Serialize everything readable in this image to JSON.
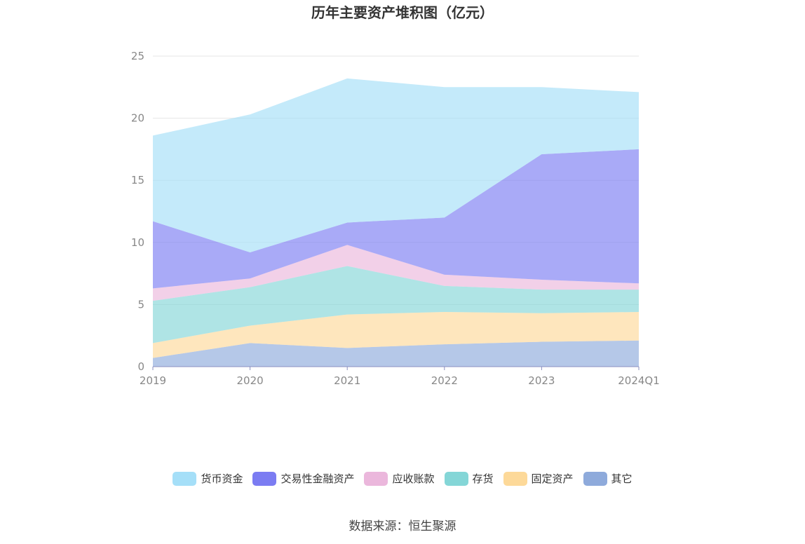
{
  "title": "历年主要资产堆积图（亿元）",
  "source": "数据来源：恒生聚源",
  "chart_data": {
    "type": "area",
    "stacked": true,
    "categories": [
      "2019",
      "2020",
      "2021",
      "2022",
      "2023",
      "2024Q1"
    ],
    "ylim": [
      0,
      25
    ],
    "yticks": [
      "0",
      "5",
      "10",
      "15",
      "20",
      "25"
    ],
    "grid": true,
    "legend_position": "bottom",
    "series": [
      {
        "name": "其它",
        "color": "#8eaadb",
        "values": [
          0.7,
          1.9,
          1.5,
          1.8,
          2.0,
          2.1
        ]
      },
      {
        "name": "固定资产",
        "color": "#fdd999",
        "values": [
          1.2,
          1.4,
          2.7,
          2.6,
          2.3,
          2.3
        ]
      },
      {
        "name": "存货",
        "color": "#84d6d7",
        "values": [
          3.4,
          3.1,
          3.9,
          2.1,
          1.9,
          1.8
        ]
      },
      {
        "name": "应收账款",
        "color": "#ebb7dc",
        "values": [
          1.0,
          0.7,
          1.7,
          0.9,
          0.8,
          0.5
        ]
      },
      {
        "name": "交易性金融资产",
        "color": "#7b7cf2",
        "values": [
          5.4,
          2.1,
          1.8,
          4.6,
          10.1,
          10.8
        ]
      },
      {
        "name": "货币资金",
        "color": "#a5dff8",
        "values": [
          6.9,
          11.1,
          11.6,
          10.5,
          5.4,
          4.6
        ]
      }
    ]
  },
  "legend": [
    {
      "label": "货币资金",
      "color": "#a5dff8"
    },
    {
      "label": "交易性金融资产",
      "color": "#7b7cf2"
    },
    {
      "label": "应收账款",
      "color": "#ebb7dc"
    },
    {
      "label": "存货",
      "color": "#84d6d7"
    },
    {
      "label": "固定资产",
      "color": "#fdd999"
    },
    {
      "label": "其它",
      "color": "#8eaadb"
    }
  ]
}
